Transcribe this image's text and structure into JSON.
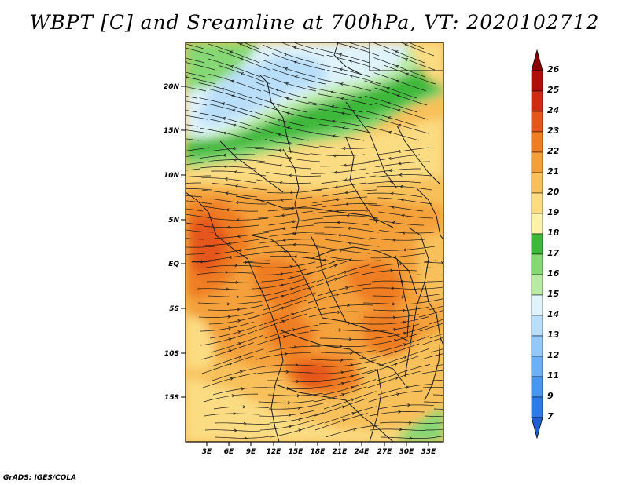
{
  "title": "WBPT [C] and Sreamline at 700hPa, VT: 2020102712",
  "footer": "GrADS: IGES/COLA",
  "map": {
    "lat_labels": [
      "20N",
      "15N",
      "10N",
      "5N",
      "EQ",
      "5S",
      "10S",
      "15S"
    ],
    "lon_labels": [
      "3E",
      "6E",
      "9E",
      "12E",
      "15E",
      "18E",
      "21E",
      "24E",
      "27E",
      "30E",
      "33E"
    ]
  },
  "colorbar": {
    "labels": [
      "7",
      "9",
      "11",
      "12",
      "13",
      "14",
      "15",
      "16",
      "17",
      "18",
      "19",
      "20",
      "21",
      "22",
      "23",
      "24",
      "25",
      "26"
    ],
    "colors": [
      "#1f5fd6",
      "#2e7ae6",
      "#4a95f0",
      "#6eb0f5",
      "#93c9f8",
      "#b8def9",
      "#dff3fb",
      "#b9eaa4",
      "#86d874",
      "#3eb83a",
      "#fbf1a8",
      "#fbdc82",
      "#f8c05a",
      "#f4a03a",
      "#ef7d21",
      "#e5561c",
      "#d12a14",
      "#b10e0a",
      "#8c0000"
    ]
  },
  "field_colors": {
    "blue": "#b8def9",
    "light_blue": "#dff3fb",
    "light_green": "#b9eaa4",
    "green": "#3eb83a",
    "yellow": "#fbdc82",
    "light_orange": "#f8c05a",
    "orange": "#f4a03a",
    "dark_orange": "#ef7d21",
    "red_orange": "#e5561c"
  }
}
